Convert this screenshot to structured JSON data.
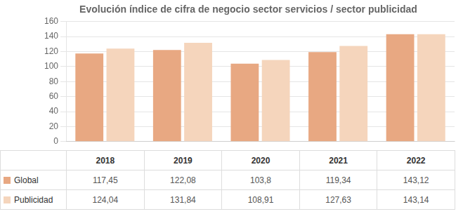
{
  "chart_data": {
    "type": "bar",
    "title": "Evolución índice de cifra de negocio sector servicios / sector publicidad",
    "categories": [
      "2018",
      "2019",
      "2020",
      "2021",
      "2022"
    ],
    "series": [
      {
        "name": "Global",
        "color": "#E8A882",
        "values": [
          117.45,
          122.08,
          103.8,
          119.34,
          143.12
        ],
        "value_labels": [
          "117,45",
          "122,08",
          "103,8",
          "119,34",
          "143,12"
        ]
      },
      {
        "name": "Publicidad",
        "color": "#F5D5BC",
        "values": [
          124.04,
          131.84,
          108.91,
          127.63,
          143.14
        ],
        "value_labels": [
          "124,04",
          "131,84",
          "108,91",
          "127,63",
          "143,14"
        ]
      }
    ],
    "ylim": [
      0,
      160
    ],
    "yticks": [
      0,
      20,
      40,
      60,
      80,
      100,
      120,
      140,
      160
    ],
    "grid": true,
    "tick_labels": "y"
  }
}
